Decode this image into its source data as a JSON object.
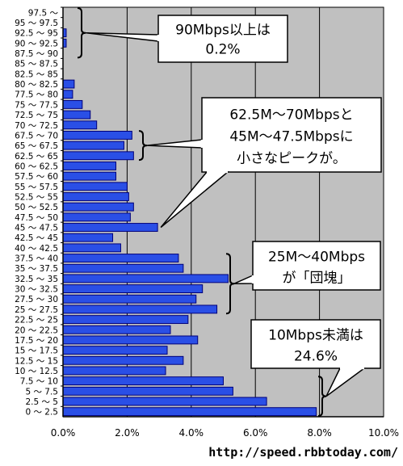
{
  "chart_data": {
    "type": "bar",
    "orientation": "horizontal",
    "categories": [
      "0 ～ 2.5",
      "2.5 ～ 5",
      "5 ～ 7.5",
      "7.5 ～ 10",
      "10 ～ 12.5",
      "12.5 ～ 15",
      "15 ～ 17.5",
      "17.5 ～ 20",
      "20 ～ 22.5",
      "22.5 ～ 25",
      "25 ～ 27.5",
      "27.5 ～ 30",
      "30 ～ 32.5",
      "32.5 ～ 35",
      "35 ～ 37.5",
      "37.5 ～ 40",
      "40 ～ 42.5",
      "42.5 ～ 45",
      "45 ～ 47.5",
      "47.5 ～ 50",
      "50 ～ 52.5",
      "52.5 ～ 55",
      "55 ～ 57.5",
      "57.5 ～ 60",
      "60 ～ 62.5",
      "62.5 ～ 65",
      "65 ～ 67.5",
      "67.5 ～ 70",
      "70 ～ 72.5",
      "72.5 ～ 75",
      "75 ～ 77.5",
      "77.5 ～ 80",
      "80 ～ 82.5",
      "82.5 ～ 85",
      "85 ～ 87.5",
      "87.5 ～ 90",
      "90 ～ 92.5",
      "92.5 ～ 95",
      "95 ～ 97.5",
      "97.5 ～"
    ],
    "values": [
      7.9,
      6.35,
      5.3,
      5.0,
      3.2,
      3.75,
      3.25,
      4.2,
      3.35,
      3.9,
      4.8,
      4.15,
      4.35,
      5.15,
      3.75,
      3.6,
      1.8,
      1.55,
      2.95,
      2.1,
      2.2,
      2.05,
      2.0,
      1.65,
      1.65,
      2.2,
      1.9,
      2.15,
      1.05,
      0.85,
      0.6,
      0.3,
      0.35,
      0.0,
      0.0,
      0.0,
      0.1,
      0.1,
      0.0,
      0.0
    ],
    "value_unit": "%",
    "xlim": [
      0,
      10
    ],
    "xticks": [
      "0.0%",
      "2.0%",
      "4.0%",
      "6.0%",
      "8.0%",
      "10.0%"
    ],
    "grid": "vertical",
    "colors": {
      "bar": "#2a4fe6",
      "bar_edge": "#00007a",
      "plot_bg": "#c0c0c0",
      "grid": "#000000"
    },
    "annotations": [
      {
        "lines": [
          "90Mbps以上は",
          "0.2%"
        ]
      },
      {
        "lines": [
          "62.5M～70Mbpsと",
          "45M～47.5Mbpsに",
          "小さなピークが。"
        ]
      },
      {
        "lines": [
          "25M～40Mbps",
          "が「団塊」"
        ]
      },
      {
        "lines": [
          "10Mbps未満は",
          "24.6%"
        ]
      }
    ]
  },
  "source_url": "http://speed.rbbtoday.com/"
}
